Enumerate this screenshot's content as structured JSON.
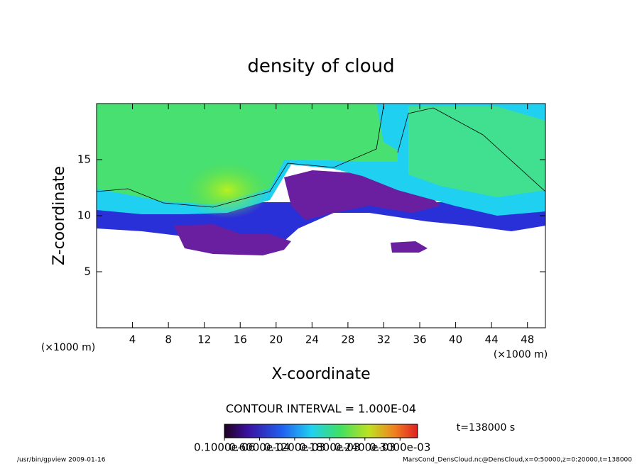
{
  "chart_data": {
    "type": "contour",
    "title": "density of cloud",
    "x_label": "X-coordinate",
    "y_label": "Z-coordinate",
    "x_unit": "(×1000 m)",
    "y_unit": "(×1000 m)",
    "xlim": [
      0,
      50
    ],
    "xticks": [
      4,
      8,
      12,
      16,
      20,
      24,
      28,
      32,
      36,
      40,
      44,
      48
    ],
    "ylim": [
      0,
      20
    ],
    "yticks": [
      5,
      10,
      15
    ],
    "contour_interval": "CONTOUR INTERVAL = 1.000E-04",
    "time": "t=138000 s",
    "clim": [
      0,
      0.00033
    ],
    "colorbar_ticks": [
      {
        "value": 1e-07,
        "label": "0.1000e-06"
      },
      {
        "value": 6e-05,
        "label": "0.6000e-04"
      },
      {
        "value": 0.00012,
        "label": "0.1200e-03"
      },
      {
        "value": 0.00018,
        "label": "0.1800e-03"
      },
      {
        "value": 0.00024,
        "label": "0.2400e-03"
      },
      {
        "value": 0.0003,
        "label": "0.3000e-03"
      }
    ],
    "footer_left": "/usr/bin/gpview  2009-01-16",
    "footer_right": "MarsCond_DensCloud.nc@DensCloud,x=0:50000,z=0:20000,t=138000"
  }
}
